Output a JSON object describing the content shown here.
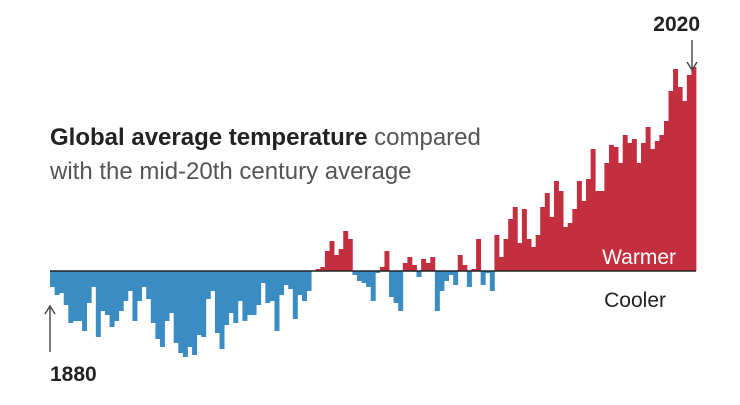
{
  "chart_data": {
    "type": "bar",
    "title_bold": "Global average temperature",
    "title_rest_line1": " compared",
    "title_line2": "with the mid-20th century average",
    "start_label": "1880",
    "end_label": "2020",
    "warmer_label": "Warmer",
    "cooler_label": "Cooler",
    "xlim": [
      1880,
      2020
    ],
    "ylim": [
      -0.48,
      1.0
    ],
    "colors": {
      "warm": "#c42f3f",
      "cool": "#3a8cc2",
      "baseline": "#222222",
      "text": "#555555",
      "label": "#222222"
    },
    "x": [
      1880,
      1881,
      1882,
      1883,
      1884,
      1885,
      1886,
      1887,
      1888,
      1889,
      1890,
      1891,
      1892,
      1893,
      1894,
      1895,
      1896,
      1897,
      1898,
      1899,
      1900,
      1901,
      1902,
      1903,
      1904,
      1905,
      1906,
      1907,
      1908,
      1909,
      1910,
      1911,
      1912,
      1913,
      1914,
      1915,
      1916,
      1917,
      1918,
      1919,
      1920,
      1921,
      1922,
      1923,
      1924,
      1925,
      1926,
      1927,
      1928,
      1929,
      1930,
      1931,
      1932,
      1933,
      1934,
      1935,
      1936,
      1937,
      1938,
      1939,
      1940,
      1941,
      1942,
      1943,
      1944,
      1945,
      1946,
      1947,
      1948,
      1949,
      1950,
      1951,
      1952,
      1953,
      1954,
      1955,
      1956,
      1957,
      1958,
      1959,
      1960,
      1961,
      1962,
      1963,
      1964,
      1965,
      1966,
      1967,
      1968,
      1969,
      1970,
      1971,
      1972,
      1973,
      1974,
      1975,
      1976,
      1977,
      1978,
      1979,
      1980,
      1981,
      1982,
      1983,
      1984,
      1985,
      1986,
      1987,
      1988,
      1989,
      1990,
      1991,
      1992,
      1993,
      1994,
      1995,
      1996,
      1997,
      1998,
      1999,
      2000,
      2001,
      2002,
      2003,
      2004,
      2005,
      2006,
      2007,
      2008,
      2009,
      2010,
      2011,
      2012,
      2013,
      2014,
      2015,
      2016,
      2017,
      2018,
      2019,
      2020
    ],
    "values": [
      -0.08,
      -0.12,
      -0.11,
      -0.17,
      -0.26,
      -0.25,
      -0.25,
      -0.3,
      -0.16,
      -0.08,
      -0.33,
      -0.2,
      -0.22,
      -0.28,
      -0.25,
      -0.2,
      -0.15,
      -0.1,
      -0.25,
      -0.15,
      -0.08,
      -0.14,
      -0.26,
      -0.34,
      -0.38,
      -0.25,
      -0.21,
      -0.36,
      -0.41,
      -0.43,
      -0.38,
      -0.42,
      -0.32,
      -0.33,
      -0.14,
      -0.1,
      -0.31,
      -0.39,
      -0.27,
      -0.21,
      -0.26,
      -0.15,
      -0.25,
      -0.22,
      -0.22,
      -0.17,
      -0.06,
      -0.16,
      -0.15,
      -0.3,
      -0.12,
      -0.07,
      -0.09,
      -0.24,
      -0.12,
      -0.15,
      -0.1,
      0.0,
      0.01,
      0.02,
      0.1,
      0.15,
      0.08,
      0.11,
      0.2,
      0.16,
      -0.02,
      -0.05,
      -0.06,
      -0.08,
      -0.15,
      -0.01,
      0.02,
      0.1,
      -0.13,
      -0.16,
      -0.2,
      0.04,
      0.07,
      0.03,
      -0.03,
      0.06,
      0.04,
      0.07,
      -0.2,
      -0.1,
      -0.05,
      -0.02,
      -0.07,
      0.08,
      0.03,
      -0.08,
      0.01,
      0.16,
      -0.07,
      -0.01,
      -0.1,
      0.18,
      0.07,
      0.16,
      0.26,
      0.32,
      0.14,
      0.31,
      0.16,
      0.12,
      0.18,
      0.32,
      0.39,
      0.27,
      0.45,
      0.4,
      0.22,
      0.24,
      0.31,
      0.45,
      0.35,
      0.46,
      0.61,
      0.4,
      0.4,
      0.54,
      0.63,
      0.62,
      0.54,
      0.68,
      0.64,
      0.66,
      0.54,
      0.64,
      0.72,
      0.61,
      0.65,
      0.68,
      0.75,
      0.9,
      1.01,
      0.92,
      0.85,
      0.98,
      1.02
    ]
  }
}
